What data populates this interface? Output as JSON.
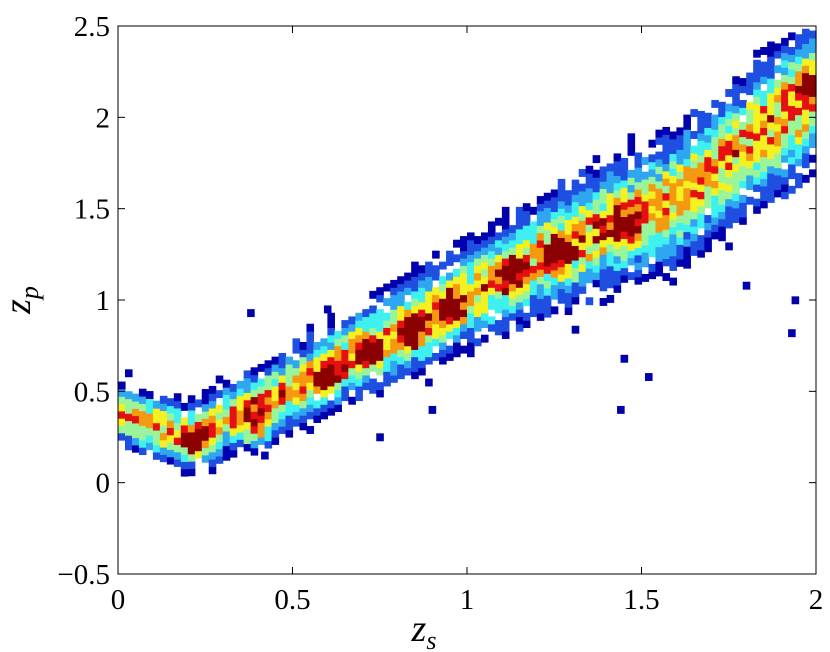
{
  "chart_data": {
    "type": "heatmap",
    "title": "",
    "xlabel": "z",
    "xlabel_subscript": "s",
    "ylabel": "z",
    "ylabel_subscript": "p",
    "xlim": [
      0,
      2
    ],
    "ylim": [
      -0.5,
      2.5
    ],
    "xticks": [
      "0",
      "0.5",
      "1",
      "1.5",
      "2"
    ],
    "yticks": [
      "−0.5",
      "0",
      "0.5",
      "1",
      "1.5",
      "2",
      "2.5"
    ],
    "grid": false,
    "legend": "none",
    "colormap": [
      "#0000ad",
      "#1f4fe0",
      "#2fa6f0",
      "#3ff0f0",
      "#9af59a",
      "#f5f020",
      "#f59a10",
      "#e61010",
      "#8b0000"
    ],
    "description_of_density": "Dense diagonal band of points, roughly z_p ≈ z_s with scatter; hotspots near the band center.",
    "band_center": [
      {
        "x": 0.0,
        "y": 0.38
      },
      {
        "x": 0.2,
        "y": 0.25
      },
      {
        "x": 0.4,
        "y": 0.42
      },
      {
        "x": 0.6,
        "y": 0.62
      },
      {
        "x": 0.8,
        "y": 0.82
      },
      {
        "x": 1.0,
        "y": 1.02
      },
      {
        "x": 1.2,
        "y": 1.22
      },
      {
        "x": 1.4,
        "y": 1.4
      },
      {
        "x": 1.6,
        "y": 1.55
      },
      {
        "x": 1.8,
        "y": 1.85
      },
      {
        "x": 2.0,
        "y": 2.15
      }
    ],
    "hotspots": [
      {
        "x": 0.22,
        "y": 0.22
      },
      {
        "x": 0.4,
        "y": 0.3
      },
      {
        "x": 0.6,
        "y": 0.58
      },
      {
        "x": 0.72,
        "y": 0.72
      },
      {
        "x": 0.85,
        "y": 0.82
      },
      {
        "x": 0.95,
        "y": 0.95
      },
      {
        "x": 1.12,
        "y": 1.15
      },
      {
        "x": 1.27,
        "y": 1.25
      },
      {
        "x": 1.45,
        "y": 1.4
      },
      {
        "x": 1.98,
        "y": 2.18
      }
    ],
    "outliers": [
      {
        "x": 0.38,
        "y": 0.93
      },
      {
        "x": 0.6,
        "y": 0.95
      },
      {
        "x": 0.89,
        "y": 0.55
      },
      {
        "x": 0.9,
        "y": 0.4
      },
      {
        "x": 0.75,
        "y": 0.25
      },
      {
        "x": 0.42,
        "y": 0.15
      },
      {
        "x": 1.44,
        "y": 0.4
      },
      {
        "x": 1.45,
        "y": 0.68
      },
      {
        "x": 1.52,
        "y": 0.58
      },
      {
        "x": 1.94,
        "y": 1.0
      },
      {
        "x": 1.93,
        "y": 0.82
      },
      {
        "x": 1.8,
        "y": 1.08
      },
      {
        "x": 1.83,
        "y": 2.35
      }
    ]
  }
}
